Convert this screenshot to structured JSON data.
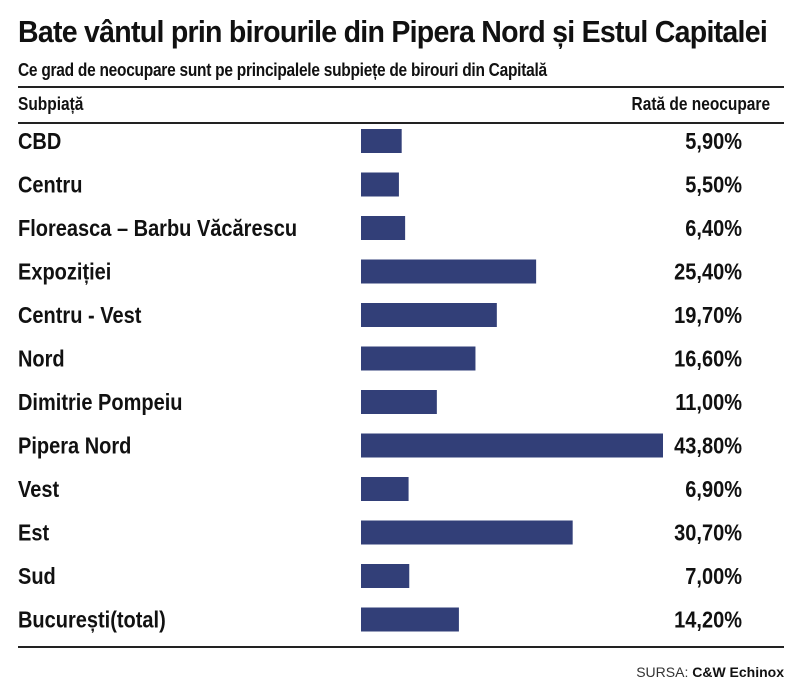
{
  "title": "Bate vântul prin birourile din Pipera Nord și Estul Capitalei",
  "subtitle": "Ce grad de neocupare sunt pe principalele subpiețe de birouri din Capitală",
  "header": {
    "left": "Subpiață",
    "right": "Rată de neocupare"
  },
  "source": {
    "label": "SURSA:",
    "value": "C&W Echinox"
  },
  "colors": {
    "bar": "#323f78",
    "text": "#111111"
  },
  "chart_data": {
    "type": "bar",
    "orientation": "horizontal",
    "categories": [
      "CBD",
      "Centru",
      "Floreasca – Barbu Văcărescu",
      "Expoziției",
      "Centru - Vest",
      "Nord",
      "Dimitrie Pompeiu",
      "Pipera Nord",
      "Vest",
      "Est",
      "Sud",
      "București(total)"
    ],
    "values": [
      5.9,
      5.5,
      6.4,
      25.4,
      19.7,
      16.6,
      11.0,
      43.8,
      6.9,
      30.7,
      7.0,
      14.2
    ],
    "value_labels": [
      "5,90%",
      "5,50%",
      "6,40%",
      "25,40%",
      "19,70%",
      "16,60%",
      "11,00%",
      "43,80%",
      "6,90%",
      "30,70%",
      "7,00%",
      "14,20%"
    ],
    "unit": "%",
    "xlim": [
      0,
      43.8
    ],
    "grid": false,
    "legend": "none"
  }
}
